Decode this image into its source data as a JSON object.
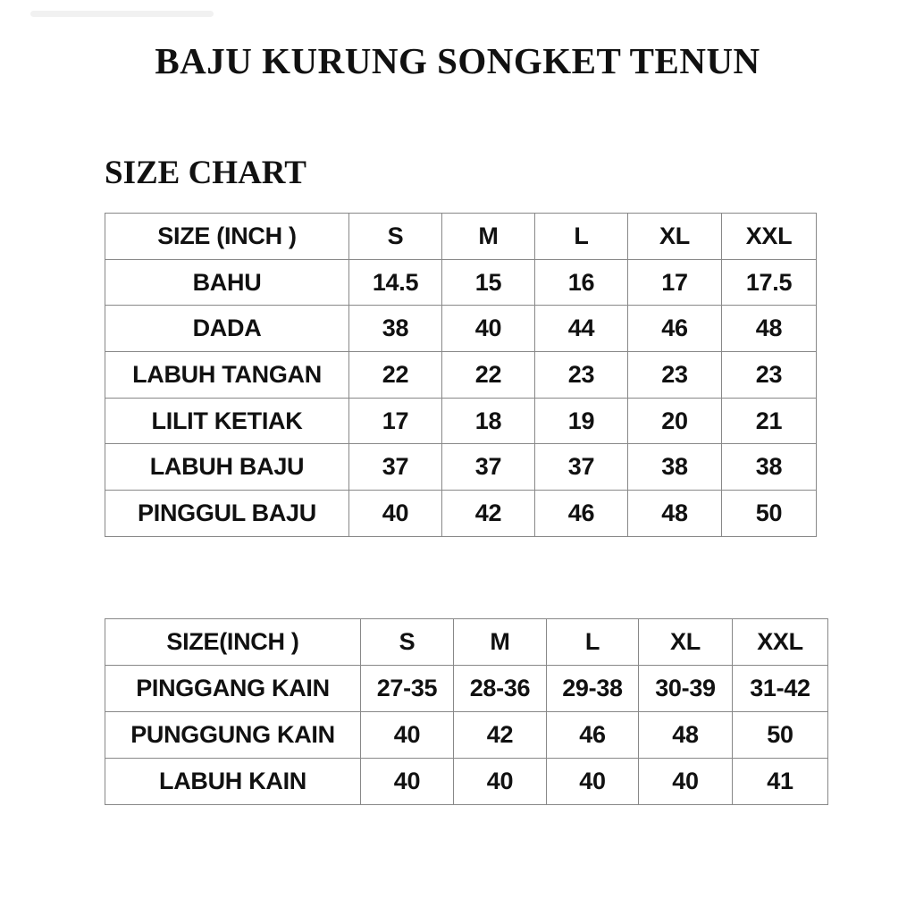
{
  "title": "BAJU KURUNG SONGKET TENUN",
  "subtitle": "SIZE CHART",
  "baju_table": {
    "header": [
      "SIZE (INCH )",
      "S",
      "M",
      "L",
      "XL",
      "XXL"
    ],
    "rows": [
      [
        "BAHU",
        "14.5",
        "15",
        "16",
        "17",
        "17.5"
      ],
      [
        "DADA",
        "38",
        "40",
        "44",
        "46",
        "48"
      ],
      [
        "LABUH TANGAN",
        "22",
        "22",
        "23",
        "23",
        "23"
      ],
      [
        "LILIT KETIAK",
        "17",
        "18",
        "19",
        "20",
        "21"
      ],
      [
        "LABUH BAJU",
        "37",
        "37",
        "37",
        "38",
        "38"
      ],
      [
        "PINGGUL BAJU",
        "40",
        "42",
        "46",
        "48",
        "50"
      ]
    ]
  },
  "kain_table": {
    "header": [
      "SIZE(INCH )",
      "S",
      "M",
      "L",
      "XL",
      "XXL"
    ],
    "rows": [
      [
        "PINGGANG KAIN",
        "27-35",
        "28-36",
        "29-38",
        "30-39",
        "31-42"
      ],
      [
        "PUNGGUNG KAIN",
        "40",
        "42",
        "46",
        "48",
        "50"
      ],
      [
        "LABUH KAIN",
        "40",
        "40",
        "40",
        "40",
        "41"
      ]
    ]
  }
}
